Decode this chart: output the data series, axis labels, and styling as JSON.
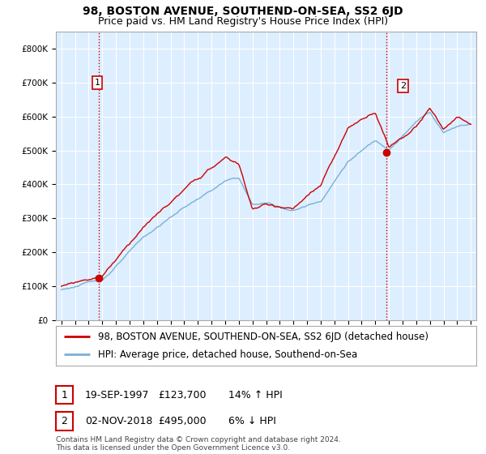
{
  "title": "98, BOSTON AVENUE, SOUTHEND-ON-SEA, SS2 6JD",
  "subtitle": "Price paid vs. HM Land Registry's House Price Index (HPI)",
  "ylim": [
    0,
    850000
  ],
  "yticks": [
    0,
    100000,
    200000,
    300000,
    400000,
    500000,
    600000,
    700000,
    800000
  ],
  "ytick_labels": [
    "£0",
    "£100K",
    "£200K",
    "£300K",
    "£400K",
    "£500K",
    "£600K",
    "£700K",
    "£800K"
  ],
  "xlim_left": 1994.6,
  "xlim_right": 2025.4,
  "sale1_date": 1997.73,
  "sale1_price": 123700,
  "sale1_label": "1",
  "sale2_date": 2018.84,
  "sale2_price": 495000,
  "sale2_label": "2",
  "property_line_color": "#cc0000",
  "hpi_line_color": "#7ab0d4",
  "plot_bg_color": "#ddeeff",
  "grid_color": "#ffffff",
  "background_color": "#ffffff",
  "vline_color": "#cc0000",
  "legend_property": "98, BOSTON AVENUE, SOUTHEND-ON-SEA, SS2 6JD (detached house)",
  "legend_hpi": "HPI: Average price, detached house, Southend-on-Sea",
  "annotation1_date": "19-SEP-1997",
  "annotation1_price": "£123,700",
  "annotation1_hpi": "14% ↑ HPI",
  "annotation2_date": "02-NOV-2018",
  "annotation2_price": "£495,000",
  "annotation2_hpi": "6% ↓ HPI",
  "copyright_text": "Contains HM Land Registry data © Crown copyright and database right 2024.\nThis data is licensed under the Open Government Licence v3.0.",
  "title_fontsize": 10,
  "subtitle_fontsize": 9,
  "tick_fontsize": 7.5,
  "anno_fontsize": 9
}
